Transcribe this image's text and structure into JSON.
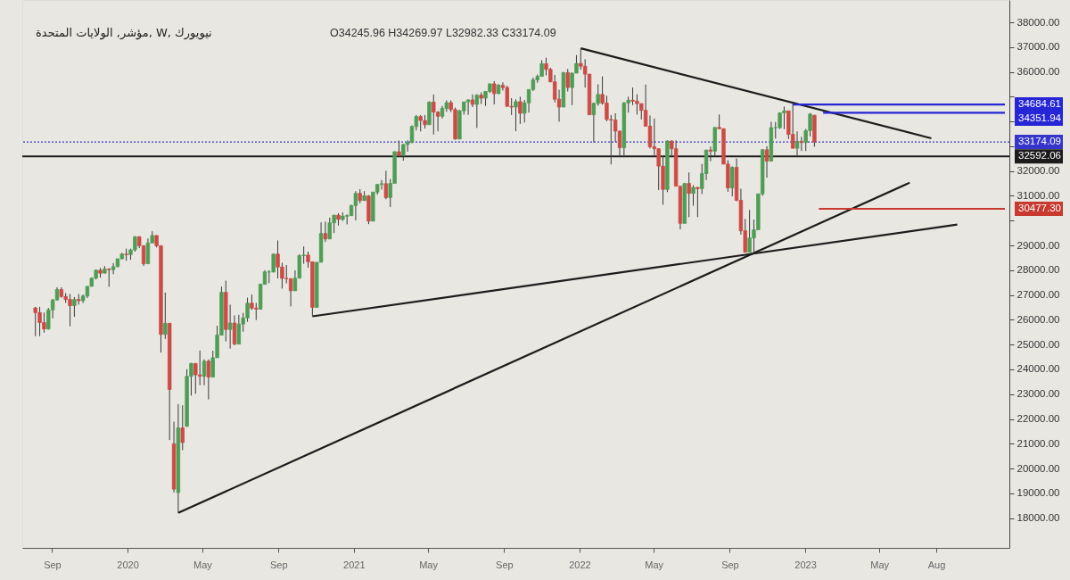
{
  "chart_data": {
    "type": "candlestick",
    "title": "مؤشر, الولايات المتحدة, W, نيويورك",
    "subtitle": "O34245.96 H34269.97 L32982.33 C33174.09",
    "x": [
      "2019-08-05",
      "2019-08-12",
      "2019-08-19",
      "2019-08-26",
      "2019-09-02",
      "2019-09-09",
      "2019-09-16",
      "2019-09-23",
      "2019-09-30",
      "2019-10-07",
      "2019-10-14",
      "2019-10-21",
      "2019-10-28",
      "2019-11-04",
      "2019-11-11",
      "2019-11-18",
      "2019-11-25",
      "2019-12-02",
      "2019-12-09",
      "2019-12-16",
      "2019-12-23",
      "2019-12-30",
      "2020-01-06",
      "2020-01-13",
      "2020-01-20",
      "2020-01-27",
      "2020-02-03",
      "2020-02-10",
      "2020-02-17",
      "2020-02-24",
      "2020-03-02",
      "2020-03-09",
      "2020-03-16",
      "2020-03-23",
      "2020-03-30",
      "2020-04-06",
      "2020-04-13",
      "2020-04-20",
      "2020-04-27",
      "2020-05-04",
      "2020-05-11",
      "2020-05-18",
      "2020-05-25",
      "2020-06-01",
      "2020-06-08",
      "2020-06-15",
      "2020-06-22",
      "2020-06-29",
      "2020-07-06",
      "2020-07-13",
      "2020-07-20",
      "2020-07-27",
      "2020-08-03",
      "2020-08-10",
      "2020-08-17",
      "2020-08-24",
      "2020-08-31",
      "2020-09-07",
      "2020-09-14",
      "2020-09-21",
      "2020-09-28",
      "2020-10-05",
      "2020-10-12",
      "2020-10-19",
      "2020-10-26",
      "2020-11-02",
      "2020-11-09",
      "2020-11-16",
      "2020-11-23",
      "2020-11-30",
      "2020-12-07",
      "2020-12-14",
      "2020-12-21",
      "2020-12-28",
      "2021-01-04",
      "2021-01-11",
      "2021-01-18",
      "2021-01-25",
      "2021-02-01",
      "2021-02-08",
      "2021-02-15",
      "2021-02-22",
      "2021-03-01",
      "2021-03-08",
      "2021-03-15",
      "2021-03-22",
      "2021-03-29",
      "2021-04-05",
      "2021-04-12",
      "2021-04-19",
      "2021-04-26",
      "2021-05-03",
      "2021-05-10",
      "2021-05-17",
      "2021-05-24",
      "2021-05-31",
      "2021-06-07",
      "2021-06-14",
      "2021-06-21",
      "2021-06-28",
      "2021-07-05",
      "2021-07-12",
      "2021-07-19",
      "2021-07-26",
      "2021-08-02",
      "2021-08-09",
      "2021-08-16",
      "2021-08-23",
      "2021-08-30",
      "2021-09-06",
      "2021-09-13",
      "2021-09-20",
      "2021-09-27",
      "2021-10-04",
      "2021-10-11",
      "2021-10-18",
      "2021-10-25",
      "2021-11-01",
      "2021-11-08",
      "2021-11-15",
      "2021-11-22",
      "2021-11-29",
      "2021-12-06",
      "2021-12-13",
      "2021-12-20",
      "2021-12-27",
      "2022-01-03",
      "2022-01-10",
      "2022-01-17",
      "2022-01-24",
      "2022-01-31",
      "2022-02-07",
      "2022-02-14",
      "2022-02-21",
      "2022-02-28",
      "2022-03-07",
      "2022-03-14",
      "2022-03-21",
      "2022-03-28",
      "2022-04-04",
      "2022-04-11",
      "2022-04-18",
      "2022-04-25",
      "2022-05-02",
      "2022-05-09",
      "2022-05-16",
      "2022-05-23",
      "2022-05-30",
      "2022-06-06",
      "2022-06-13",
      "2022-06-20",
      "2022-06-27",
      "2022-07-04",
      "2022-07-11",
      "2022-07-18",
      "2022-07-25",
      "2022-08-01",
      "2022-08-08",
      "2022-08-15",
      "2022-08-22",
      "2022-08-29",
      "2022-09-05",
      "2022-09-12",
      "2022-09-19",
      "2022-09-26",
      "2022-10-03",
      "2022-10-10",
      "2022-10-17",
      "2022-10-24",
      "2022-10-31",
      "2022-11-07",
      "2022-11-14",
      "2022-11-21",
      "2022-11-28",
      "2022-12-05",
      "2022-12-12",
      "2022-12-19",
      "2022-12-26",
      "2023-01-02",
      "2023-01-09",
      "2023-01-16"
    ],
    "ohlc": [
      [
        26480,
        26520,
        25340,
        26290
      ],
      [
        26290,
        26520,
        25340,
        25890
      ],
      [
        25890,
        26290,
        25480,
        25630
      ],
      [
        25630,
        26480,
        25600,
        26400
      ],
      [
        26400,
        26840,
        26060,
        26800
      ],
      [
        26800,
        27310,
        26780,
        27220
      ],
      [
        27220,
        27310,
        26890,
        26940
      ],
      [
        26940,
        27080,
        26680,
        26820
      ],
      [
        26820,
        27040,
        25740,
        26570
      ],
      [
        26570,
        26920,
        26120,
        26820
      ],
      [
        26820,
        27040,
        26610,
        26770
      ],
      [
        26770,
        27020,
        26680,
        26960
      ],
      [
        26960,
        27350,
        26880,
        27350
      ],
      [
        27350,
        27700,
        27350,
        27680
      ],
      [
        27680,
        28030,
        27630,
        28000
      ],
      [
        28000,
        28090,
        27700,
        27880
      ],
      [
        27880,
        28170,
        27880,
        28050
      ],
      [
        28050,
        28080,
        27330,
        28020
      ],
      [
        28020,
        28290,
        27840,
        28140
      ],
      [
        28140,
        28460,
        28130,
        28460
      ],
      [
        28460,
        28700,
        28450,
        28650
      ],
      [
        28650,
        28870,
        28380,
        28630
      ],
      [
        28630,
        28870,
        28420,
        28820
      ],
      [
        28820,
        29370,
        28750,
        29350
      ],
      [
        29350,
        29370,
        28890,
        28990
      ],
      [
        28990,
        29000,
        28170,
        28260
      ],
      [
        28260,
        29280,
        28260,
        29100
      ],
      [
        29100,
        29570,
        29100,
        29400
      ],
      [
        29400,
        29410,
        28920,
        28990
      ],
      [
        28990,
        28990,
        24680,
        25410
      ],
      [
        25410,
        27100,
        25230,
        25860
      ],
      [
        25860,
        25860,
        21150,
        23190
      ],
      [
        21000,
        21890,
        19030,
        19170
      ],
      [
        19030,
        22600,
        18210,
        21640
      ],
      [
        21640,
        22550,
        20740,
        21050
      ],
      [
        21700,
        24010,
        21700,
        23720
      ],
      [
        23720,
        24260,
        22940,
        24240
      ],
      [
        24240,
        24240,
        23020,
        23780
      ],
      [
        23780,
        24760,
        23360,
        23720
      ],
      [
        23720,
        24400,
        23360,
        24330
      ],
      [
        24330,
        24400,
        22790,
        23690
      ],
      [
        23690,
        24750,
        23690,
        24470
      ],
      [
        24470,
        25760,
        24470,
        25380
      ],
      [
        25380,
        27340,
        25380,
        27110
      ],
      [
        27110,
        27580,
        25130,
        25610
      ],
      [
        25610,
        26610,
        24840,
        25870
      ],
      [
        25870,
        26180,
        24980,
        25020
      ],
      [
        25020,
        26200,
        25020,
        25830
      ],
      [
        25830,
        26280,
        25520,
        26080
      ],
      [
        26080,
        26890,
        25920,
        26670
      ],
      [
        26670,
        27020,
        26400,
        26470
      ],
      [
        26470,
        26680,
        25990,
        26430
      ],
      [
        26430,
        27460,
        26420,
        27430
      ],
      [
        27430,
        28000,
        27430,
        27930
      ],
      [
        27930,
        28000,
        27480,
        27930
      ],
      [
        27930,
        28660,
        27910,
        28650
      ],
      [
        28650,
        29200,
        27670,
        28130
      ],
      [
        28130,
        28300,
        27260,
        27670
      ],
      [
        27670,
        28210,
        27470,
        27660
      ],
      [
        27660,
        27660,
        26540,
        27170
      ],
      [
        27170,
        28000,
        27170,
        27680
      ],
      [
        27680,
        28640,
        27670,
        28590
      ],
      [
        28590,
        28960,
        28260,
        28610
      ],
      [
        28610,
        28750,
        28100,
        28340
      ],
      [
        28340,
        28340,
        26140,
        26500
      ],
      [
        26500,
        28320,
        26500,
        28320
      ],
      [
        28320,
        29930,
        28320,
        29480
      ],
      [
        29480,
        29960,
        29140,
        29260
      ],
      [
        29260,
        30120,
        29260,
        29910
      ],
      [
        29910,
        30230,
        29500,
        30220
      ],
      [
        30220,
        30300,
        29800,
        30050
      ],
      [
        30050,
        30330,
        29990,
        30180
      ],
      [
        30180,
        30250,
        29850,
        30200
      ],
      [
        30200,
        30640,
        30190,
        30610
      ],
      [
        30610,
        31190,
        30010,
        31100
      ],
      [
        31100,
        31270,
        30700,
        30810
      ],
      [
        30810,
        31190,
        30800,
        31000
      ],
      [
        31000,
        31030,
        29860,
        29980
      ],
      [
        29980,
        31160,
        29980,
        31150
      ],
      [
        31150,
        31470,
        31050,
        31460
      ],
      [
        31460,
        31640,
        31260,
        31490
      ],
      [
        31490,
        32010,
        30860,
        30930
      ],
      [
        30930,
        31680,
        30550,
        31500
      ],
      [
        31500,
        32790,
        31500,
        32780
      ],
      [
        32780,
        33230,
        32580,
        32630
      ],
      [
        32630,
        33100,
        32420,
        33070
      ],
      [
        33070,
        33240,
        32780,
        33150
      ],
      [
        33150,
        33840,
        33130,
        33800
      ],
      [
        33800,
        34260,
        33640,
        34200
      ],
      [
        34200,
        34260,
        33600,
        34040
      ],
      [
        34040,
        34260,
        33720,
        33870
      ],
      [
        33870,
        34810,
        33870,
        34780
      ],
      [
        34780,
        35090,
        33470,
        34380
      ],
      [
        34380,
        34410,
        33600,
        34210
      ],
      [
        34210,
        34630,
        34120,
        34530
      ],
      [
        34530,
        34850,
        34390,
        34760
      ],
      [
        34760,
        34850,
        34380,
        34480
      ],
      [
        34480,
        34560,
        33270,
        33290
      ],
      [
        33290,
        34470,
        33290,
        34430
      ],
      [
        34430,
        34790,
        34280,
        34790
      ],
      [
        34790,
        34890,
        34270,
        34870
      ],
      [
        34870,
        35090,
        34580,
        34690
      ],
      [
        34690,
        35100,
        33740,
        35060
      ],
      [
        35060,
        35170,
        34710,
        34940
      ],
      [
        34940,
        35230,
        34630,
        35210
      ],
      [
        35210,
        35520,
        35150,
        35520
      ],
      [
        35520,
        35630,
        34690,
        35120
      ],
      [
        35120,
        35510,
        35120,
        35460
      ],
      [
        35460,
        35580,
        35250,
        35370
      ],
      [
        35370,
        35440,
        34600,
        34610
      ],
      [
        34610,
        34940,
        34260,
        34580
      ],
      [
        34580,
        34890,
        33610,
        34800
      ],
      [
        34800,
        35000,
        33900,
        34330
      ],
      [
        34330,
        34870,
        33960,
        34750
      ],
      [
        34750,
        35300,
        34360,
        35290
      ],
      [
        35290,
        35770,
        35230,
        35680
      ],
      [
        35680,
        35890,
        35560,
        35820
      ],
      [
        35820,
        36470,
        35820,
        36330
      ],
      [
        36330,
        36570,
        35860,
        36100
      ],
      [
        36100,
        36170,
        35580,
        35600
      ],
      [
        35600,
        35880,
        34770,
        34900
      ],
      [
        34900,
        35280,
        33990,
        34580
      ],
      [
        34580,
        36000,
        34580,
        35970
      ],
      [
        35970,
        36120,
        35210,
        35370
      ],
      [
        35370,
        35970,
        34660,
        35950
      ],
      [
        35950,
        36680,
        35950,
        36340
      ],
      [
        36340,
        36950,
        36090,
        36230
      ],
      [
        36230,
        36510,
        35370,
        35910
      ],
      [
        35910,
        35910,
        34260,
        34270
      ],
      [
        34270,
        34760,
        33150,
        34730
      ],
      [
        34730,
        35500,
        34640,
        35090
      ],
      [
        35090,
        35820,
        34680,
        34740
      ],
      [
        34740,
        35040,
        34010,
        34080
      ],
      [
        34080,
        34260,
        32270,
        34060
      ],
      [
        34060,
        34330,
        33170,
        33610
      ],
      [
        33610,
        33630,
        32630,
        32940
      ],
      [
        32940,
        34780,
        32580,
        34750
      ],
      [
        34750,
        35000,
        34360,
        34860
      ],
      [
        34860,
        35370,
        34660,
        34820
      ],
      [
        34820,
        35100,
        34280,
        34720
      ],
      [
        34720,
        34720,
        34080,
        34450
      ],
      [
        34450,
        35490,
        33800,
        33810
      ],
      [
        33810,
        34240,
        32910,
        32980
      ],
      [
        32980,
        34120,
        32640,
        32900
      ],
      [
        32900,
        32910,
        31230,
        32200
      ],
      [
        32200,
        32610,
        30640,
        31260
      ],
      [
        31260,
        33240,
        31150,
        33210
      ],
      [
        33210,
        33240,
        32580,
        32900
      ],
      [
        32900,
        33240,
        31390,
        31390
      ],
      [
        31390,
        31390,
        29650,
        29890
      ],
      [
        29890,
        31520,
        29890,
        31500
      ],
      [
        31500,
        31940,
        30140,
        31100
      ],
      [
        31100,
        31430,
        30600,
        31340
      ],
      [
        31340,
        31350,
        30140,
        31290
      ],
      [
        31290,
        32290,
        31070,
        31900
      ],
      [
        31900,
        32850,
        31640,
        32850
      ],
      [
        32850,
        32990,
        32400,
        32800
      ],
      [
        32800,
        33760,
        32580,
        33760
      ],
      [
        33760,
        34280,
        33690,
        33710
      ],
      [
        33710,
        33710,
        32280,
        32280
      ],
      [
        32280,
        32440,
        31160,
        31320
      ],
      [
        31320,
        32190,
        30980,
        32150
      ],
      [
        32150,
        32510,
        30780,
        30820
      ],
      [
        30820,
        31290,
        29440,
        29590
      ],
      [
        29590,
        30070,
        28720,
        28730
      ],
      [
        28730,
        30430,
        28730,
        29300
      ],
      [
        29300,
        30040,
        28660,
        29630
      ],
      [
        29630,
        31090,
        29630,
        31080
      ],
      [
        31080,
        32890,
        31000,
        32860
      ],
      [
        32860,
        33000,
        31730,
        32400
      ],
      [
        32400,
        33990,
        32400,
        33750
      ],
      [
        33750,
        33980,
        33310,
        33750
      ],
      [
        33750,
        34360,
        33700,
        34350
      ],
      [
        34350,
        34600,
        33690,
        34430
      ],
      [
        34430,
        34430,
        33290,
        33480
      ],
      [
        33480,
        34710,
        32920,
        32920
      ],
      [
        32920,
        33600,
        32580,
        33200
      ],
      [
        33200,
        33380,
        32810,
        33150
      ],
      [
        33150,
        33700,
        32810,
        33630
      ],
      [
        33630,
        34340,
        33400,
        34300
      ],
      [
        34245.96,
        34269.97,
        32982.33,
        33174.09
      ]
    ],
    "colors": [
      "#cc4b45",
      "#cc4b45",
      "#cc4b45",
      "#4f9d55",
      "#4f9d55",
      "#4f9d55",
      "#cc4b45",
      "#cc4b45",
      "#cc4b45",
      "#4f9d55",
      "#cc4b45",
      "#4f9d55",
      "#4f9d55",
      "#4f9d55",
      "#4f9d55",
      "#cc4b45",
      "#4f9d55",
      "#cc4b45",
      "#4f9d55",
      "#4f9d55",
      "#4f9d55",
      "#cc4b45",
      "#4f9d55",
      "#4f9d55",
      "#cc4b45",
      "#cc4b45",
      "#4f9d55",
      "#4f9d55",
      "#cc4b45",
      "#cc4b45",
      "#4f9d55",
      "#cc4b45",
      "#cc4b45",
      "#4f9d55",
      "#cc4b45",
      "#4f9d55",
      "#4f9d55",
      "#cc4b45",
      "#cc4b45",
      "#4f9d55",
      "#cc4b45",
      "#4f9d55",
      "#4f9d55",
      "#4f9d55",
      "#cc4b45",
      "#4f9d55",
      "#cc4b45",
      "#4f9d55",
      "#4f9d55",
      "#4f9d55",
      "#cc4b45",
      "#cc4b45",
      "#4f9d55",
      "#4f9d55",
      "#4f9d55",
      "#4f9d55",
      "#cc4b45",
      "#cc4b45",
      "#cc4b45",
      "#cc4b45",
      "#4f9d55",
      "#4f9d55",
      "#4f9d55",
      "#cc4b45",
      "#cc4b45",
      "#4f9d55",
      "#4f9d55",
      "#cc4b45",
      "#4f9d55",
      "#4f9d55",
      "#cc4b45",
      "#4f9d55",
      "#4f9d55",
      "#4f9d55",
      "#4f9d55",
      "#cc4b45",
      "#4f9d55",
      "#cc4b45",
      "#4f9d55",
      "#4f9d55",
      "#4f9d55",
      "#cc4b45",
      "#4f9d55",
      "#4f9d55",
      "#cc4b45",
      "#4f9d55",
      "#4f9d55",
      "#4f9d55",
      "#4f9d55",
      "#cc4b45",
      "#cc4b45",
      "#4f9d55",
      "#cc4b45",
      "#cc4b45",
      "#4f9d55",
      "#4f9d55",
      "#cc4b45",
      "#cc4b45",
      "#4f9d55",
      "#4f9d55",
      "#4f9d55",
      "#cc4b45",
      "#4f9d55",
      "#cc4b45",
      "#4f9d55",
      "#4f9d55",
      "#cc4b45",
      "#4f9d55",
      "#cc4b45",
      "#cc4b45",
      "#cc4b45",
      "#4f9d55",
      "#cc4b45",
      "#4f9d55",
      "#4f9d55",
      "#4f9d55",
      "#4f9d55",
      "#4f9d55",
      "#cc4b45",
      "#cc4b45",
      "#cc4b45",
      "#cc4b45",
      "#4f9d55",
      "#cc4b45",
      "#4f9d55",
      "#4f9d55",
      "#cc4b45",
      "#cc4b45",
      "#cc4b45",
      "#4f9d55",
      "#4f9d55",
      "#cc4b45",
      "#cc4b45",
      "#cc4b45",
      "#cc4b45",
      "#cc4b45",
      "#4f9d55",
      "#4f9d55",
      "#cc4b45",
      "#cc4b45",
      "#cc4b45",
      "#cc4b45",
      "#cc4b45",
      "#cc4b45",
      "#cc4b45",
      "#cc4b45",
      "#4f9d55",
      "#cc4b45",
      "#cc4b45",
      "#cc4b45",
      "#4f9d55",
      "#cc4b45",
      "#4f9d55",
      "#cc4b45",
      "#4f9d55",
      "#4f9d55",
      "#cc4b45",
      "#4f9d55",
      "#cc4b45",
      "#cc4b45",
      "#cc4b45",
      "#4f9d55",
      "#cc4b45",
      "#cc4b45",
      "#cc4b45",
      "#4f9d55",
      "#4f9d55",
      "#4f9d55",
      "#4f9d55",
      "#cc4b45",
      "#4f9d55",
      "#4f9d55",
      "#4f9d55",
      "#4f9d55",
      "#cc4b45",
      "#cc4b45",
      "#4f9d55",
      "#cc4b45",
      "#4f9d55",
      "#4f9d55",
      "#cc4b45"
    ],
    "series": [
      {
        "type": "line",
        "color": "#1c1c1c",
        "x": [
          "2020-03-23",
          "2023-06-19"
        ],
        "values": [
          18210,
          31530
        ]
      },
      {
        "type": "line",
        "color": "#1c1c1c",
        "x": [
          "2020-10-26",
          "2023-09-04"
        ],
        "values": [
          26140,
          29840
        ]
      },
      {
        "type": "line",
        "color": "#1c1c1c",
        "x": [
          "2022-01-03",
          "2023-07-24"
        ],
        "values": [
          36950,
          33320
        ]
      },
      {
        "type": "line",
        "name": "34684.61",
        "color": "#2626d6",
        "x": [
          "2022-12-12",
          "2023-11-20"
        ],
        "values": [
          34684.61,
          34684.61
        ]
      },
      {
        "type": "line",
        "name": "34351.94",
        "color": "#2626d6",
        "x": [
          "2023-01-30",
          "2023-11-20"
        ],
        "values": [
          34351.94,
          34351.94
        ]
      },
      {
        "type": "line",
        "name": "30477.30",
        "color": "#c8392f",
        "x": [
          "2023-01-23",
          "2023-11-20"
        ],
        "values": [
          30477.3,
          30477.3
        ]
      }
    ],
    "ref_lines": [
      {
        "axis": "y",
        "value": 33174.09,
        "label": "33174.09",
        "color": "#3535cc",
        "line_style": "dotted"
      },
      {
        "axis": "y",
        "value": 32592.06,
        "label": "32592.06",
        "color": "#1c1c1c"
      }
    ],
    "xlim": [
      "2019-07-22",
      "2023-11-20"
    ],
    "xticks": [
      {
        "value": "2019-09-01",
        "label": "Sep"
      },
      {
        "value": "2020-01-01",
        "label": "2020"
      },
      {
        "value": "2020-05-01",
        "label": "May"
      },
      {
        "value": "2020-09-01",
        "label": "Sep"
      },
      {
        "value": "2021-01-01",
        "label": "2021"
      },
      {
        "value": "2021-05-01",
        "label": "May"
      },
      {
        "value": "2021-09-01",
        "label": "Sep"
      },
      {
        "value": "2022-01-01",
        "label": "2022"
      },
      {
        "value": "2022-05-01",
        "label": "May"
      },
      {
        "value": "2022-09-01",
        "label": "Sep"
      },
      {
        "value": "2023-01-01",
        "label": "2023"
      },
      {
        "value": "2023-05-01",
        "label": "May"
      },
      {
        "value": "2023-08-01",
        "label": "Aug"
      }
    ],
    "ylim": [
      16800,
      38900
    ],
    "yticks": [
      {
        "value": 18000,
        "label": "18000.00"
      },
      {
        "value": 19000,
        "label": "19000.00"
      },
      {
        "value": 20000,
        "label": "20000.00"
      },
      {
        "value": 21000,
        "label": "21000.00"
      },
      {
        "value": 22000,
        "label": "22000.00"
      },
      {
        "value": 23000,
        "label": "23000.00"
      },
      {
        "value": 24000,
        "label": "24000.00"
      },
      {
        "value": 25000,
        "label": "25000.00"
      },
      {
        "value": 26000,
        "label": "26000.00"
      },
      {
        "value": 27000,
        "label": "27000.00"
      },
      {
        "value": 28000,
        "label": "28000.00"
      },
      {
        "value": 29000,
        "label": "29000.00"
      },
      {
        "value": 30000,
        "label": null
      },
      {
        "value": 31000,
        "label": "31000.00"
      },
      {
        "value": 32000,
        "label": "32000.00"
      },
      {
        "value": 33000,
        "label": null
      },
      {
        "value": 34000,
        "label": null
      },
      {
        "value": 35000,
        "label": null
      },
      {
        "value": 36000,
        "label": "36000.00"
      },
      {
        "value": 37000,
        "label": "37000.00"
      },
      {
        "value": 38000,
        "label": "38000.00"
      }
    ]
  }
}
